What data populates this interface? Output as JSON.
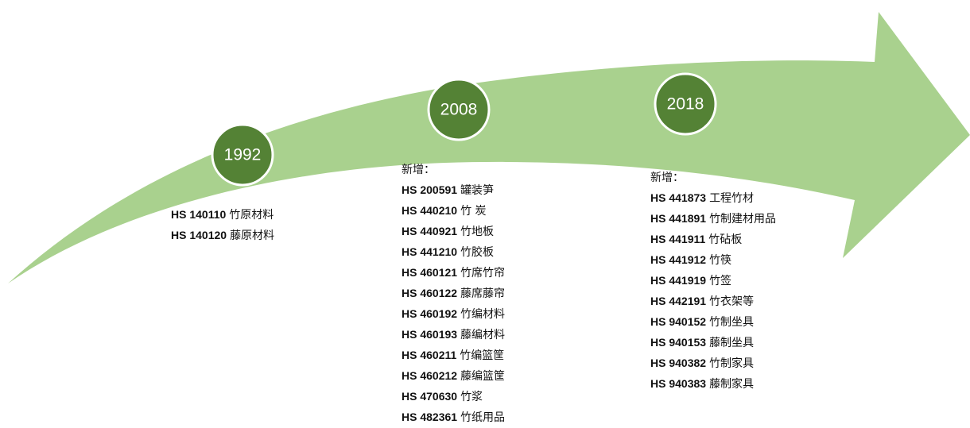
{
  "milestones": [
    {
      "year": "1992",
      "items": [
        {
          "code": "HS 140110",
          "name": "竹原材料"
        },
        {
          "code": "HS 140120",
          "name": "藤原材料"
        }
      ]
    },
    {
      "year": "2008",
      "heading": "新增：",
      "items": [
        {
          "code": "HS 200591",
          "name": "罐装笋"
        },
        {
          "code": "HS 440210",
          "name": "竹 炭"
        },
        {
          "code": "HS 440921",
          "name": "竹地板"
        },
        {
          "code": "HS 441210",
          "name": "竹胶板"
        },
        {
          "code": "HS 460121",
          "name": "竹席竹帘"
        },
        {
          "code": "HS 460122",
          "name": "藤席藤帘"
        },
        {
          "code": "HS 460192",
          "name": "竹编材料"
        },
        {
          "code": "HS 460193",
          "name": "藤编材料"
        },
        {
          "code": "HS 460211",
          "name": "竹编篮筐"
        },
        {
          "code": "HS 460212",
          "name": "藤编篮筐"
        },
        {
          "code": "HS 470630",
          "name": "竹浆"
        },
        {
          "code": "HS 482361",
          "name": "竹纸用品"
        }
      ]
    },
    {
      "year": "2018",
      "heading": "新增：",
      "items": [
        {
          "code": "HS 441873",
          "name": "工程竹材"
        },
        {
          "code": "HS 441891",
          "name": "竹制建材用品"
        },
        {
          "code": "HS 441911",
          "name": "竹砧板"
        },
        {
          "code": "HS 441912",
          "name": "竹筷"
        },
        {
          "code": "HS 441919",
          "name": "竹签"
        },
        {
          "code": "HS 442191",
          "name": "竹衣架等"
        },
        {
          "code": "HS 940152",
          "name": "竹制坐具"
        },
        {
          "code": "HS 940153",
          "name": "藤制坐具"
        },
        {
          "code": "HS 940382",
          "name": "竹制家具"
        },
        {
          "code": "HS 940383",
          "name": "藤制家具"
        }
      ]
    }
  ]
}
